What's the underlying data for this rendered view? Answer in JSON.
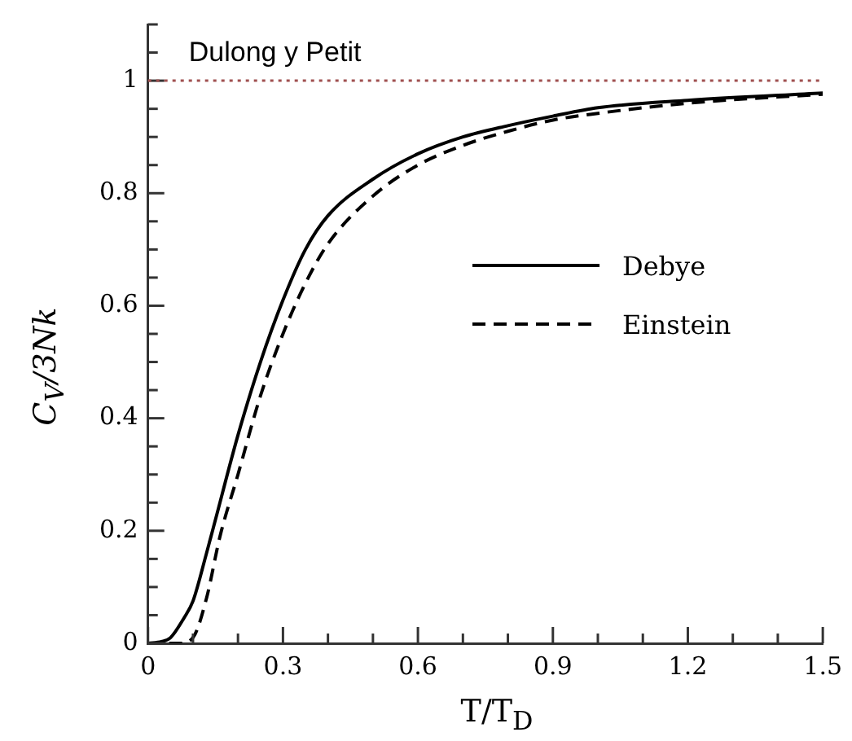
{
  "chart_data": {
    "type": "line",
    "xlabel": "T/T$_{D}$",
    "ylabel": "C$_{V}$/3Nk",
    "xlim": [
      0,
      1.5
    ],
    "ylim": [
      0,
      1.1
    ],
    "xticks": [
      0,
      {
        "value": 0.1,
        "label": null
      },
      {
        "value": 0.2,
        "label": null
      },
      0.3,
      {
        "value": 0.4,
        "label": null
      },
      {
        "value": 0.5,
        "label": null
      },
      0.6,
      {
        "value": 0.7,
        "label": null
      },
      {
        "value": 0.8,
        "label": null
      },
      0.9,
      {
        "value": 1.0,
        "label": null
      },
      {
        "value": 1.1,
        "label": null
      },
      1.2,
      {
        "value": 1.3,
        "label": null
      },
      {
        "value": 1.4,
        "label": null
      },
      1.5
    ],
    "yticks": [
      0,
      {
        "value": 0.05,
        "label": null
      },
      {
        "value": 0.1,
        "label": null
      },
      {
        "value": 0.15,
        "label": null
      },
      0.2,
      {
        "value": 0.25,
        "label": null
      },
      {
        "value": 0.3,
        "label": null
      },
      {
        "value": 0.35,
        "label": null
      },
      0.4,
      {
        "value": 0.45,
        "label": null
      },
      {
        "value": 0.5,
        "label": null
      },
      {
        "value": 0.55,
        "label": null
      },
      0.6,
      {
        "value": 0.65,
        "label": null
      },
      {
        "value": 0.7,
        "label": null
      },
      {
        "value": 0.75,
        "label": null
      },
      0.8,
      {
        "value": 0.85,
        "label": null
      },
      {
        "value": 0.9,
        "label": null
      },
      {
        "value": 0.95,
        "label": null
      },
      1,
      {
        "value": 1.05,
        "label": null
      },
      {
        "value": 1.1,
        "label": null
      }
    ],
    "grid": false,
    "legend": "right",
    "marker": "none",
    "ref_lines": [
      {
        "axis": "y",
        "value": 1,
        "label": "Dulong y Petit",
        "color": "#a05050",
        "line_style": "dotted"
      }
    ],
    "series": [
      {
        "name": "Debye",
        "color": "#000000",
        "line_style": "solid",
        "x": [
          0,
          0.03,
          0.05,
          0.08,
          0.1,
          0.13,
          0.15,
          0.2,
          0.25,
          0.3,
          0.35,
          0.4,
          0.5,
          0.6,
          0.7,
          0.8,
          0.9,
          1.0,
          1.2,
          1.5
        ],
        "values": [
          0,
          0.003,
          0.01,
          0.045,
          0.075,
          0.16,
          0.22,
          0.37,
          0.5,
          0.61,
          0.7,
          0.76,
          0.825,
          0.87,
          0.9,
          0.92,
          0.937,
          0.952,
          0.965,
          0.978
        ]
      },
      {
        "name": "Einstein",
        "color": "#000000",
        "line_style": "dashed",
        "x": [
          0,
          0.07,
          0.1,
          0.13,
          0.16,
          0.2,
          0.25,
          0.3,
          0.35,
          0.4,
          0.5,
          0.6,
          0.7,
          0.8,
          0.9,
          1.0,
          1.2,
          1.5
        ],
        "values": [
          0,
          0,
          0.01,
          0.08,
          0.19,
          0.3,
          0.44,
          0.55,
          0.64,
          0.71,
          0.795,
          0.85,
          0.885,
          0.91,
          0.93,
          0.942,
          0.96,
          0.976
        ]
      }
    ]
  }
}
